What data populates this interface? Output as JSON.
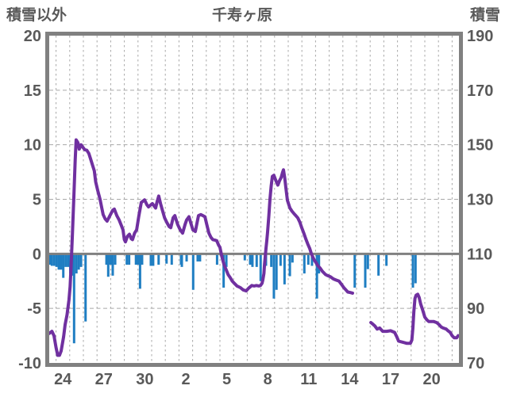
{
  "header": {
    "left_axis_title": "積雪以外",
    "title": "千寿ヶ原",
    "right_axis_title": "積雪"
  },
  "colors": {
    "line": "#7030A0",
    "bar": "#1F7EC2",
    "grid": "#A8A8A8",
    "axis": "#808080",
    "text": "#595959",
    "background": "#FFFFFF"
  },
  "chart_data": {
    "type": "line",
    "title": "千寿ヶ原",
    "grid": true,
    "legend": "none",
    "left_axis": {
      "label": "積雪以外",
      "range": [
        -10,
        20
      ],
      "ticks": [
        -10,
        -5,
        0,
        5,
        10,
        15,
        20
      ]
    },
    "right_axis": {
      "label": "積雪",
      "range": [
        70,
        190
      ],
      "ticks": [
        70,
        90,
        110,
        130,
        150,
        170,
        190
      ]
    },
    "x_axis": {
      "range_days": [
        0,
        30
      ],
      "tick_labels": [
        "24",
        "27",
        "30",
        "2",
        "5",
        "8",
        "11",
        "14",
        "17",
        "20"
      ],
      "tick_positions": [
        1,
        4,
        7,
        10,
        13,
        16,
        19,
        22,
        25,
        28
      ],
      "day_gridlines_at_half_offsets": true
    },
    "series": [
      {
        "name": "line-segment-1",
        "type": "line",
        "axis": "left",
        "color": "#7030A0",
        "points": [
          [
            0,
            -7.3
          ],
          [
            0.2,
            -7.1
          ],
          [
            0.35,
            -7.5
          ],
          [
            0.5,
            -8.6
          ],
          [
            0.62,
            -9.3
          ],
          [
            0.75,
            -9.3
          ],
          [
            0.87,
            -8.9
          ],
          [
            1.05,
            -7.6
          ],
          [
            1.16,
            -6.5
          ],
          [
            1.3,
            -5.6
          ],
          [
            1.45,
            -4.2
          ],
          [
            1.53,
            -3.0
          ],
          [
            1.6,
            -1.2
          ],
          [
            1.7,
            1.8
          ],
          [
            1.8,
            5.2
          ],
          [
            1.9,
            8.6
          ],
          [
            1.97,
            10.45
          ],
          [
            2.1,
            10.2
          ],
          [
            2.2,
            9.6
          ],
          [
            2.33,
            10.0
          ],
          [
            2.45,
            9.8
          ],
          [
            2.6,
            9.55
          ],
          [
            2.75,
            9.5
          ],
          [
            2.9,
            9.2
          ],
          [
            3.05,
            8.6
          ],
          [
            3.15,
            8.2
          ],
          [
            3.3,
            7.6
          ],
          [
            3.4,
            6.6
          ],
          [
            3.55,
            5.8
          ],
          [
            3.72,
            5.0
          ],
          [
            3.85,
            4.2
          ],
          [
            3.95,
            3.6
          ],
          [
            4.1,
            3.2
          ],
          [
            4.24,
            3.0
          ],
          [
            4.4,
            3.4
          ],
          [
            4.65,
            4.0
          ],
          [
            4.77,
            4.1
          ],
          [
            4.95,
            3.5
          ],
          [
            5.12,
            3.1
          ],
          [
            5.28,
            2.6
          ],
          [
            5.4,
            2.2
          ],
          [
            5.5,
            1.3
          ],
          [
            5.58,
            1.1
          ],
          [
            5.72,
            1.6
          ],
          [
            5.87,
            1.8
          ],
          [
            6.0,
            1.4
          ],
          [
            6.1,
            1.3
          ],
          [
            6.25,
            1.9
          ],
          [
            6.4,
            2.2
          ],
          [
            6.55,
            3.4
          ],
          [
            6.74,
            4.7
          ],
          [
            6.98,
            4.95
          ],
          [
            7.15,
            4.5
          ],
          [
            7.27,
            4.3
          ],
          [
            7.45,
            4.5
          ],
          [
            7.56,
            4.6
          ],
          [
            7.7,
            4.35
          ],
          [
            7.79,
            4.2
          ],
          [
            7.9,
            4.8
          ],
          [
            8.02,
            5.3
          ],
          [
            8.15,
            4.6
          ],
          [
            8.31,
            3.9
          ],
          [
            8.45,
            3.3
          ],
          [
            8.6,
            2.9
          ],
          [
            8.78,
            2.5
          ],
          [
            8.9,
            2.4
          ],
          [
            9.07,
            3.3
          ],
          [
            9.2,
            3.5
          ],
          [
            9.4,
            2.7
          ],
          [
            9.59,
            2.2
          ],
          [
            9.77,
            1.9
          ],
          [
            9.95,
            2.7
          ],
          [
            10.06,
            3.1
          ],
          [
            10.23,
            3.4
          ],
          [
            10.37,
            2.8
          ],
          [
            10.52,
            2.2
          ],
          [
            10.7,
            2.05
          ],
          [
            10.85,
            3.0
          ],
          [
            10.93,
            3.5
          ],
          [
            11.1,
            3.6
          ],
          [
            11.25,
            3.5
          ],
          [
            11.4,
            3.4
          ],
          [
            11.55,
            2.6
          ],
          [
            11.69,
            1.9
          ],
          [
            11.85,
            1.5
          ],
          [
            11.98,
            1.3
          ],
          [
            12.15,
            1.25
          ],
          [
            12.27,
            1.2
          ],
          [
            12.4,
            0.8
          ],
          [
            12.5,
            0.6
          ],
          [
            12.6,
            0.0
          ],
          [
            12.67,
            -0.4
          ],
          [
            12.8,
            -1.0
          ],
          [
            12.97,
            -1.5
          ],
          [
            13.1,
            -1.9
          ],
          [
            13.26,
            -2.2
          ],
          [
            13.4,
            -2.5
          ],
          [
            13.55,
            -2.7
          ],
          [
            13.75,
            -2.95
          ],
          [
            14.0,
            -3.1
          ],
          [
            14.2,
            -3.3
          ],
          [
            14.42,
            -3.4
          ],
          [
            14.6,
            -3.15
          ],
          [
            14.83,
            -2.9
          ],
          [
            15.0,
            -2.95
          ],
          [
            15.17,
            -2.9
          ],
          [
            15.35,
            -2.95
          ],
          [
            15.47,
            -2.9
          ],
          [
            15.58,
            -2.7
          ],
          [
            15.64,
            -2.4
          ],
          [
            15.72,
            -1.8
          ],
          [
            15.76,
            -1.0
          ],
          [
            15.82,
            -0.2
          ],
          [
            15.87,
            0.5
          ],
          [
            15.93,
            1.2
          ],
          [
            15.99,
            2.0
          ],
          [
            16.08,
            3.5
          ],
          [
            16.16,
            5.0
          ],
          [
            16.25,
            6.2
          ],
          [
            16.34,
            7.1
          ],
          [
            16.45,
            7.2
          ],
          [
            16.6,
            6.7
          ],
          [
            16.74,
            6.3
          ],
          [
            16.86,
            6.7
          ],
          [
            16.98,
            7.0
          ],
          [
            17.08,
            7.45
          ],
          [
            17.15,
            7.7
          ],
          [
            17.25,
            6.9
          ],
          [
            17.33,
            6.0
          ],
          [
            17.44,
            4.9
          ],
          [
            17.62,
            4.2
          ],
          [
            17.78,
            3.9
          ],
          [
            17.91,
            3.7
          ],
          [
            18.05,
            3.5
          ],
          [
            18.2,
            3.3
          ],
          [
            18.35,
            2.9
          ],
          [
            18.49,
            2.4
          ],
          [
            18.64,
            1.9
          ],
          [
            18.78,
            1.4
          ],
          [
            18.93,
            0.9
          ],
          [
            19.07,
            0.5
          ],
          [
            19.2,
            0.0
          ],
          [
            19.3,
            -0.3
          ],
          [
            19.42,
            -0.6
          ],
          [
            19.53,
            -0.8
          ],
          [
            19.68,
            -1.1
          ],
          [
            19.83,
            -1.3
          ],
          [
            20.0,
            -1.6
          ],
          [
            20.23,
            -1.9
          ],
          [
            20.4,
            -2.0
          ],
          [
            20.58,
            -2.1
          ],
          [
            20.7,
            -2.2
          ],
          [
            20.81,
            -2.3
          ],
          [
            21.0,
            -2.4
          ],
          [
            21.22,
            -2.5
          ],
          [
            21.4,
            -2.8
          ],
          [
            21.57,
            -3.1
          ],
          [
            21.72,
            -3.3
          ],
          [
            21.86,
            -3.5
          ],
          [
            22.05,
            -3.55
          ],
          [
            22.21,
            -3.6
          ]
        ]
      },
      {
        "name": "line-segment-2",
        "type": "line",
        "axis": "left",
        "color": "#7030A0",
        "points": [
          [
            23.55,
            -6.3
          ],
          [
            23.7,
            -6.45
          ],
          [
            23.84,
            -6.6
          ],
          [
            24.01,
            -6.9
          ],
          [
            24.19,
            -6.8
          ],
          [
            24.42,
            -7.1
          ],
          [
            24.71,
            -7.1
          ],
          [
            25.0,
            -7.05
          ],
          [
            25.29,
            -7.2
          ],
          [
            25.45,
            -7.6
          ],
          [
            25.58,
            -8.0
          ],
          [
            25.87,
            -8.1
          ],
          [
            26.16,
            -8.2
          ],
          [
            26.45,
            -8.2
          ],
          [
            26.55,
            -7.9
          ],
          [
            26.63,
            -6.8
          ],
          [
            26.7,
            -5.3
          ],
          [
            26.78,
            -4.1
          ],
          [
            26.86,
            -3.8
          ],
          [
            26.98,
            -3.7
          ],
          [
            27.09,
            -4.0
          ],
          [
            27.2,
            -4.6
          ],
          [
            27.33,
            -5.1
          ],
          [
            27.5,
            -5.8
          ],
          [
            27.65,
            -6.05
          ],
          [
            27.79,
            -6.2
          ],
          [
            28.0,
            -6.2
          ],
          [
            28.14,
            -6.2
          ],
          [
            28.37,
            -6.3
          ],
          [
            28.55,
            -6.5
          ],
          [
            28.7,
            -6.7
          ],
          [
            28.84,
            -6.8
          ],
          [
            29.07,
            -6.9
          ],
          [
            29.2,
            -7.05
          ],
          [
            29.36,
            -7.2
          ],
          [
            29.5,
            -7.5
          ],
          [
            29.65,
            -7.7
          ],
          [
            29.83,
            -7.7
          ],
          [
            29.94,
            -7.5
          ]
        ]
      },
      {
        "name": "bars",
        "type": "bar",
        "axis": "left",
        "color": "#1F7EC2",
        "points": [
          [
            0.05,
            -1.0
          ],
          [
            0.19,
            -1.1
          ],
          [
            0.36,
            -1.1
          ],
          [
            0.53,
            -1.2
          ],
          [
            0.7,
            -1.45
          ],
          [
            0.87,
            -1.45
          ],
          [
            1.03,
            -2.2
          ],
          [
            1.2,
            -1.2
          ],
          [
            1.37,
            -1.2
          ],
          [
            1.54,
            -1.8
          ],
          [
            1.71,
            -2.0
          ],
          [
            1.82,
            -8.2
          ],
          [
            1.99,
            -1.8
          ],
          [
            2.16,
            -1.45
          ],
          [
            2.33,
            -1.2
          ],
          [
            2.66,
            -6.2
          ],
          [
            4.19,
            -1.0
          ],
          [
            4.32,
            -2.1
          ],
          [
            4.48,
            -1.0
          ],
          [
            4.65,
            -2.0
          ],
          [
            4.83,
            -1.0
          ],
          [
            5.68,
            -1.0
          ],
          [
            5.85,
            -1.0
          ],
          [
            6.35,
            -1.0
          ],
          [
            6.51,
            -1.0
          ],
          [
            6.65,
            -3.2
          ],
          [
            6.8,
            -1.0
          ],
          [
            7.44,
            -1.1
          ],
          [
            7.61,
            -1.1
          ],
          [
            8.01,
            -1.0
          ],
          [
            8.59,
            -0.9
          ],
          [
            8.97,
            -1.0
          ],
          [
            9.65,
            -1.0
          ],
          [
            9.71,
            -1.2
          ],
          [
            10.06,
            -0.7
          ],
          [
            10.54,
            -3.3
          ],
          [
            10.87,
            -0.7
          ],
          [
            11.04,
            -0.7
          ],
          [
            12.29,
            -1.0
          ],
          [
            12.77,
            -3.1
          ],
          [
            12.97,
            -1.2
          ],
          [
            14.32,
            -0.6
          ],
          [
            14.71,
            -1.0
          ],
          [
            14.88,
            -1.2
          ],
          [
            15.19,
            -1.2
          ],
          [
            15.48,
            -2.5
          ],
          [
            15.87,
            -1.1
          ],
          [
            16.26,
            -1.2
          ],
          [
            16.45,
            -4.1
          ],
          [
            16.64,
            -3.3
          ],
          [
            16.94,
            -1.1
          ],
          [
            17.23,
            -2.8
          ],
          [
            17.62,
            -2.05
          ],
          [
            17.81,
            -0.8
          ],
          [
            18.68,
            -1.8
          ],
          [
            18.97,
            -1.0
          ],
          [
            19.24,
            -1.1
          ],
          [
            19.6,
            -4.1
          ],
          [
            19.75,
            -1.8
          ],
          [
            22.37,
            -3.1
          ],
          [
            23.14,
            -3.1
          ],
          [
            23.33,
            -1.4
          ],
          [
            24.11,
            -2.0
          ],
          [
            24.69,
            -1.1
          ],
          [
            26.63,
            -3.1
          ],
          [
            26.82,
            -2.7
          ]
        ]
      }
    ]
  }
}
